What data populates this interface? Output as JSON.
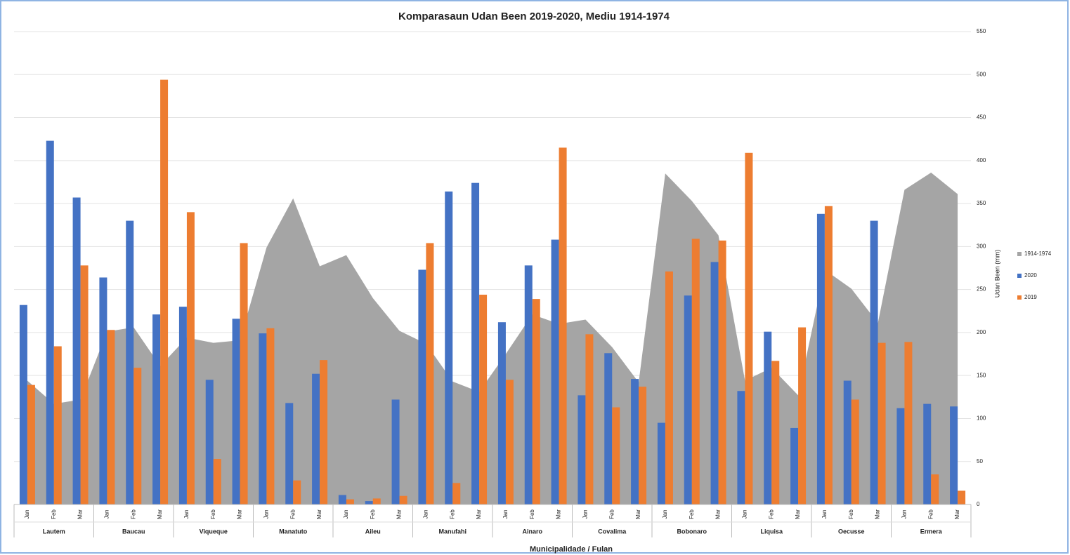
{
  "chart_data": {
    "type": "bar",
    "title": "Komparasaun Udan Been 2019-2020, Mediu 1914-1974",
    "x_label": "Municipalidade / Fulan",
    "y_label": "Udan Been (mm)",
    "groups": [
      "Lautem",
      "Baucau",
      "Viqueque",
      "Manatuto",
      "Aileu",
      "Manufahi",
      "Ainaro",
      "Covalima",
      "Bobonaro",
      "Liquisa",
      "Oecusse",
      "Ermera"
    ],
    "categories": [
      "Jan",
      "Feb",
      "Mar",
      "Jan",
      "Feb",
      "Mar",
      "Jan",
      "Feb",
      "Mar",
      "Jan",
      "Feb",
      "Mar",
      "Jan",
      "Feb",
      "Mar",
      "Jan",
      "Feb",
      "Mar",
      "Jan",
      "Feb",
      "Mar",
      "Jan",
      "Feb",
      "Mar",
      "Jan",
      "Feb",
      "Mar",
      "Jan",
      "Feb",
      "Mar",
      "Jan",
      "Feb",
      "Mar",
      "Jan",
      "Feb",
      "Mar"
    ],
    "series": [
      {
        "name": "1914-1974",
        "type": "area",
        "color": "#a5a5a5",
        "values": [
          144,
          117,
          122,
          201,
          206,
          161,
          194,
          188,
          191,
          299,
          356,
          277,
          290,
          240,
          202,
          187,
          143,
          131,
          175,
          221,
          210,
          215,
          183,
          142,
          385,
          353,
          313,
          144,
          159,
          127,
          273,
          251,
          211,
          366,
          386,
          361
        ]
      },
      {
        "name": "2020",
        "type": "bar",
        "color": "#4472c4",
        "values": [
          232,
          423,
          357,
          264,
          330,
          221,
          230,
          145,
          216,
          199,
          118,
          152,
          11,
          4,
          122,
          273,
          364,
          374,
          212,
          278,
          308,
          127,
          176,
          146,
          95,
          243,
          282,
          132,
          201,
          89,
          338,
          144,
          330,
          112,
          117,
          114
        ]
      },
      {
        "name": "2019",
        "type": "bar",
        "color": "#ed7d31",
        "values": [
          139,
          184,
          278,
          203,
          159,
          494,
          340,
          53,
          304,
          205,
          28,
          168,
          6,
          7,
          10,
          304,
          25,
          244,
          145,
          239,
          415,
          198,
          113,
          137,
          271,
          309,
          307,
          409,
          167,
          206,
          347,
          122,
          188,
          189,
          35,
          16
        ]
      }
    ],
    "ylim": [
      0,
      550
    ],
    "yticks": [
      0,
      50,
      100,
      150,
      200,
      250,
      300,
      350,
      400,
      450,
      500,
      550
    ],
    "grid": true,
    "legend": "right"
  }
}
